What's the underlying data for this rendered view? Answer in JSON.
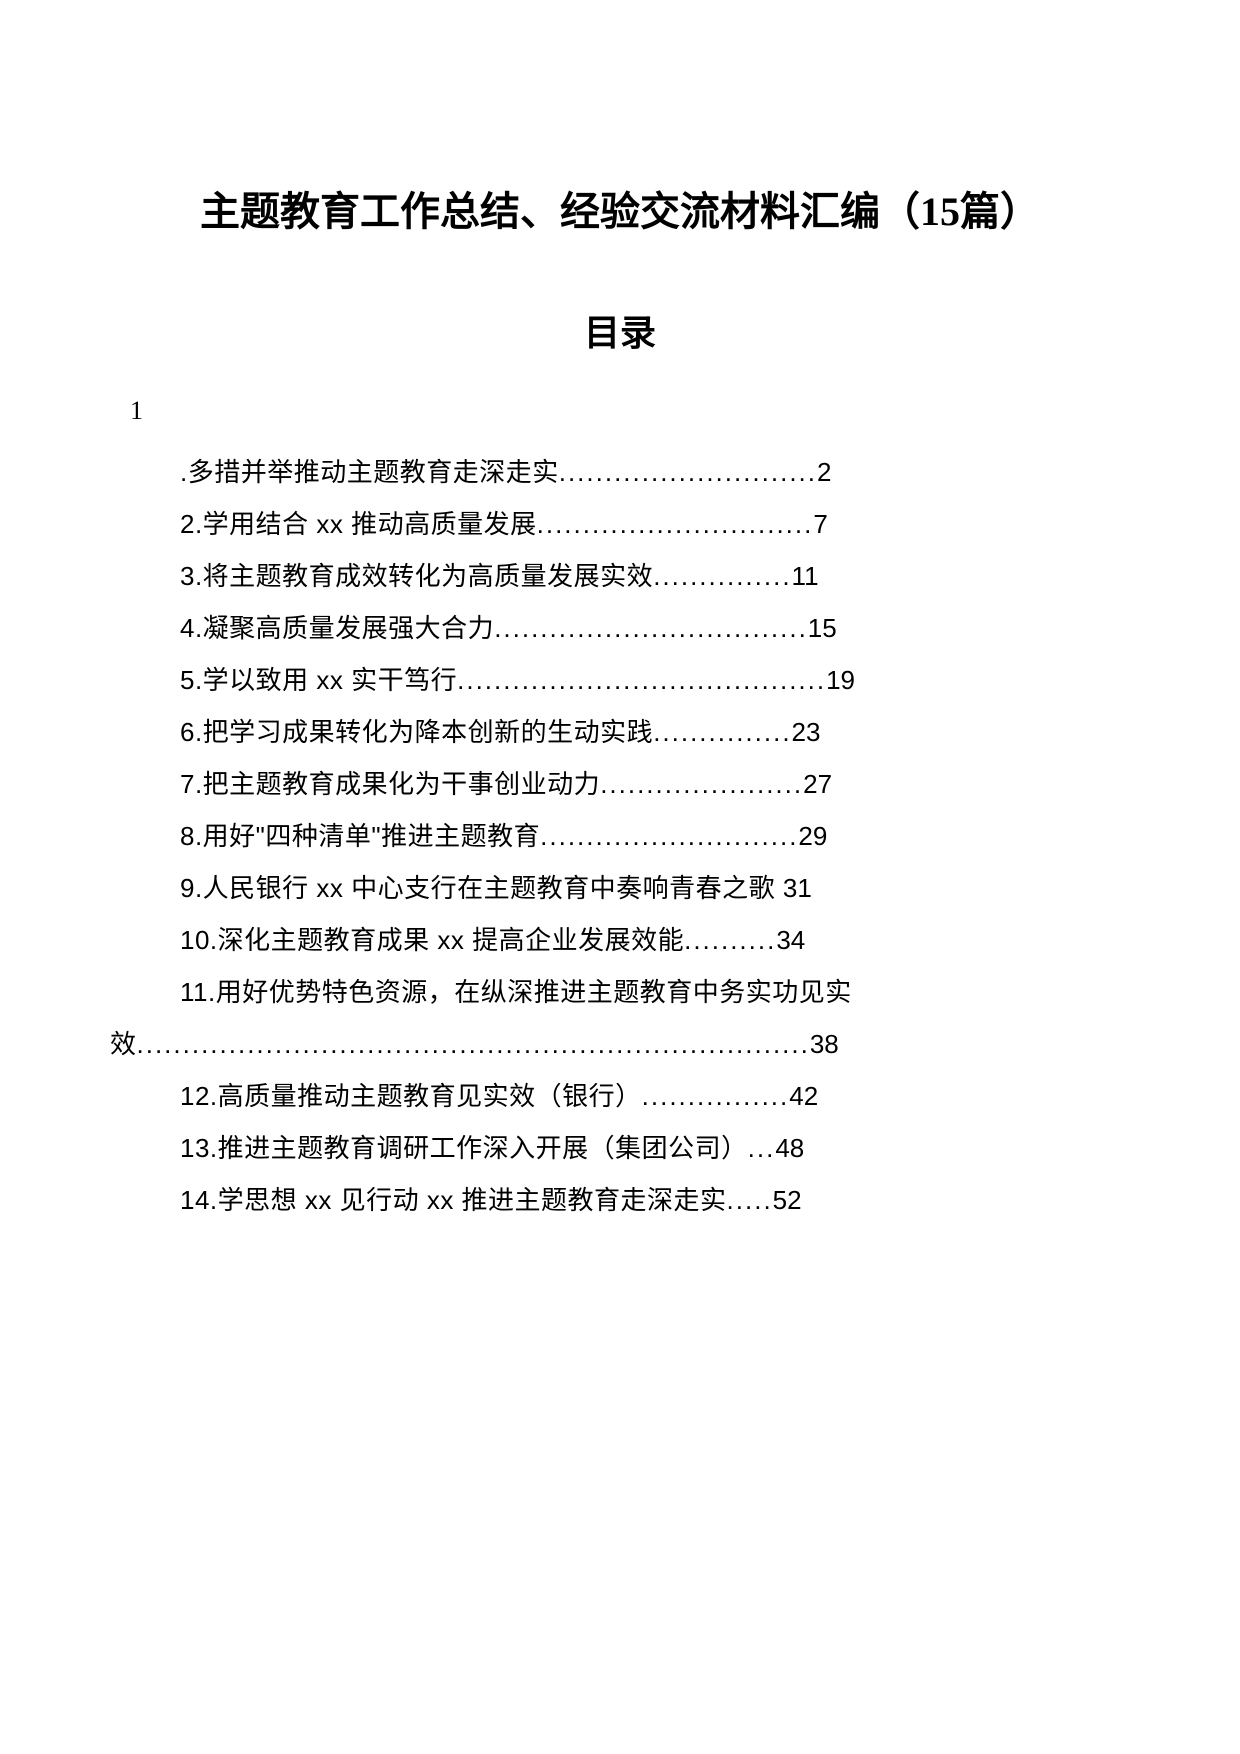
{
  "title": "主题教育工作总结、经验交流材料汇编（15篇）",
  "tocTitle": "目录",
  "sectionNumber": "1",
  "entries": [
    {
      "text": ".多措并举推动主题教育走深走实",
      "dots": "............................",
      "page": "2"
    },
    {
      "text": "2.学用结合 xx 推动高质量发展",
      "dots": "..............................",
      "page": "7"
    },
    {
      "text": "3.将主题教育成效转化为高质量发展实效",
      "dots": "...............",
      "page": "11"
    },
    {
      "text": "4.凝聚高质量发展强大合力",
      "dots": "..................................",
      "page": "15"
    },
    {
      "text": "5.学以致用 xx 实干笃行",
      "dots": "........................................",
      "page": "19"
    },
    {
      "text": "6.把学习成果转化为降本创新的生动实践",
      "dots": "...............",
      "page": "23"
    },
    {
      "text": "7.把主题教育成果化为干事创业动力",
      "dots": "......................",
      "page": "27"
    },
    {
      "text": "8.用好\"四种清单\"推进主题教育",
      "dots": "............................",
      "page": "29"
    },
    {
      "text": "9.人民银行 xx 中心支行在主题教育中奏响青春之歌 ",
      "dots": "",
      "page": "31"
    },
    {
      "text": "10.深化主题教育成果 xx 提高企业发展效能",
      "dots": "..........",
      "page": "34"
    }
  ],
  "wrapEntry": {
    "line1": "11.用好优势特色资源，在纵深推进主题教育中务实功见实",
    "line2Text": "效",
    "dots": ".........................................................................",
    "page": "38"
  },
  "entries2": [
    {
      "text": "12.高质量推动主题教育见实效（银行）",
      "dots": "................",
      "page": "42"
    },
    {
      "text": "13.推进主题教育调研工作深入开展（集团公司）",
      "dots": "...",
      "page": "48"
    },
    {
      "text": "14.学思想 xx 见行动 xx 推进主题教育走深走实",
      "dots": ".....",
      "page": "52"
    }
  ],
  "colors": {
    "background": "#ffffff",
    "text": "#000000"
  },
  "typography": {
    "titleFont": "SimSun",
    "titleSize": 40,
    "tocTitleSize": 36,
    "entryFont": "Microsoft YaHei",
    "entrySize": 26,
    "lineHeight": 2.0
  }
}
